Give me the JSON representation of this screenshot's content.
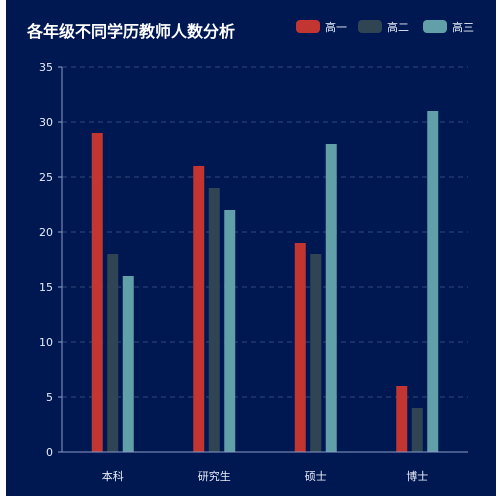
{
  "chart_data": {
    "type": "bar",
    "title": "各年级不同学历教师人数分析",
    "categories": [
      "本科",
      "研究生",
      "硕士",
      "博士"
    ],
    "series": [
      {
        "name": "高一",
        "color": "#c23531",
        "values": [
          29,
          26,
          19,
          6
        ]
      },
      {
        "name": "高二",
        "color": "#2f4554",
        "values": [
          18,
          24,
          18,
          4
        ]
      },
      {
        "name": "高三",
        "color": "#61a0a8",
        "values": [
          16,
          22,
          28,
          31
        ]
      }
    ],
    "ylim": [
      0,
      35
    ],
    "yticks": [
      0,
      5,
      10,
      15,
      20,
      25,
      30,
      35
    ],
    "grid": true,
    "legend": "top-right"
  }
}
